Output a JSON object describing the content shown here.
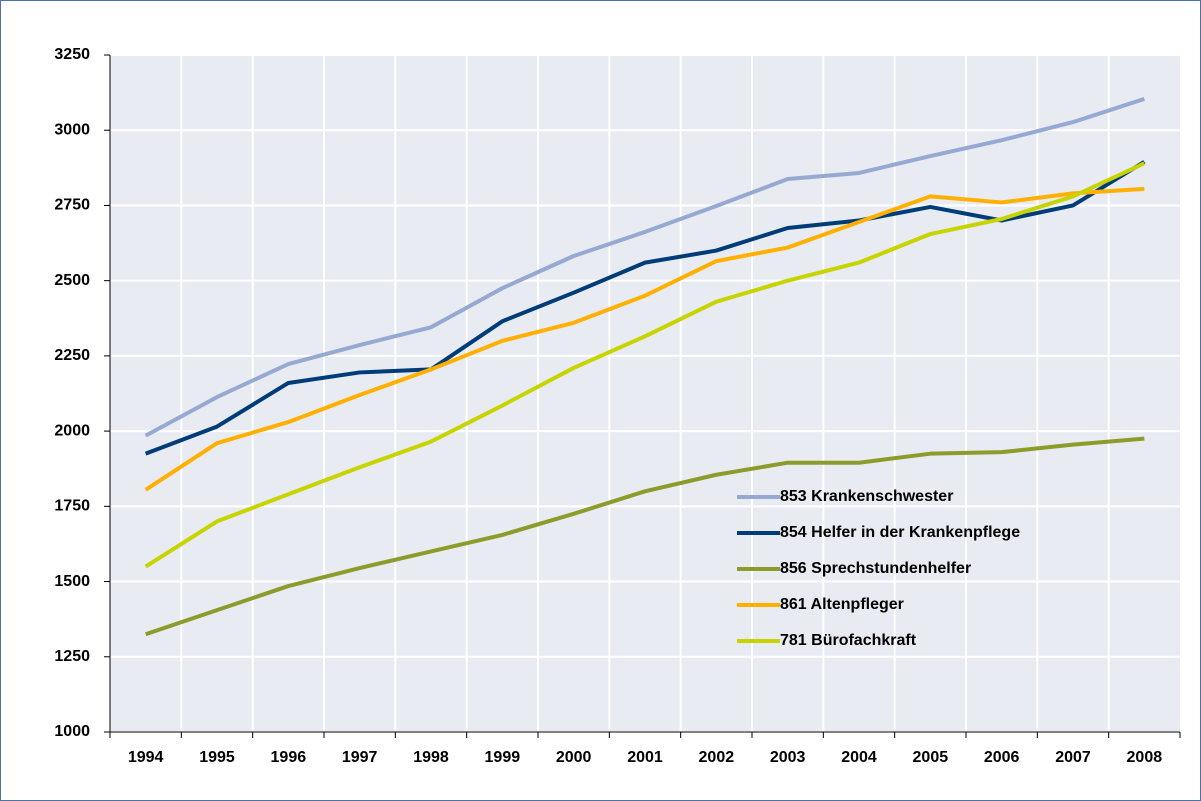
{
  "chart_data": {
    "type": "line",
    "categories": [
      "1994",
      "1995",
      "1996",
      "1997",
      "1998",
      "1999",
      "2000",
      "2001",
      "2002",
      "2003",
      "2004",
      "2005",
      "2006",
      "2007",
      "2008"
    ],
    "series": [
      {
        "name": "853 Krankenschwester",
        "color": "#95a9d3",
        "values": [
          1985,
          2113,
          2223,
          2286,
          2345,
          2475,
          2582,
          2662,
          2748,
          2838,
          2858,
          2914,
          2967,
          3027,
          3104
        ]
      },
      {
        "name": "854 Helfer in der Krankenpflege",
        "color": "#003c78",
        "values": [
          1925,
          2015,
          2160,
          2195,
          2205,
          2365,
          2460,
          2560,
          2600,
          2675,
          2700,
          2745,
          2700,
          2750,
          2895
        ]
      },
      {
        "name": "856 Sprechstundenhelfer",
        "color": "#8c9b2a",
        "values": [
          1325,
          1405,
          1485,
          1545,
          1600,
          1655,
          1725,
          1800,
          1855,
          1895,
          1895,
          1925,
          1930,
          1955,
          1975
        ]
      },
      {
        "name": "861 Altenpfleger",
        "color": "#ffb000",
        "values": [
          1805,
          1960,
          2030,
          2120,
          2205,
          2300,
          2360,
          2450,
          2565,
          2610,
          2695,
          2780,
          2760,
          2790,
          2805
        ]
      },
      {
        "name": "781 Bürofachkraft",
        "color": "#c8d400",
        "values": [
          1550,
          1700,
          1790,
          1880,
          1965,
          2085,
          2210,
          2315,
          2430,
          2500,
          2560,
          2655,
          2705,
          2780,
          2890
        ]
      }
    ],
    "ylim": [
      1000,
      3250
    ],
    "yticks": [
      1000,
      1250,
      1500,
      1750,
      2000,
      2250,
      2500,
      2750,
      3000,
      3250
    ],
    "grid": true
  }
}
